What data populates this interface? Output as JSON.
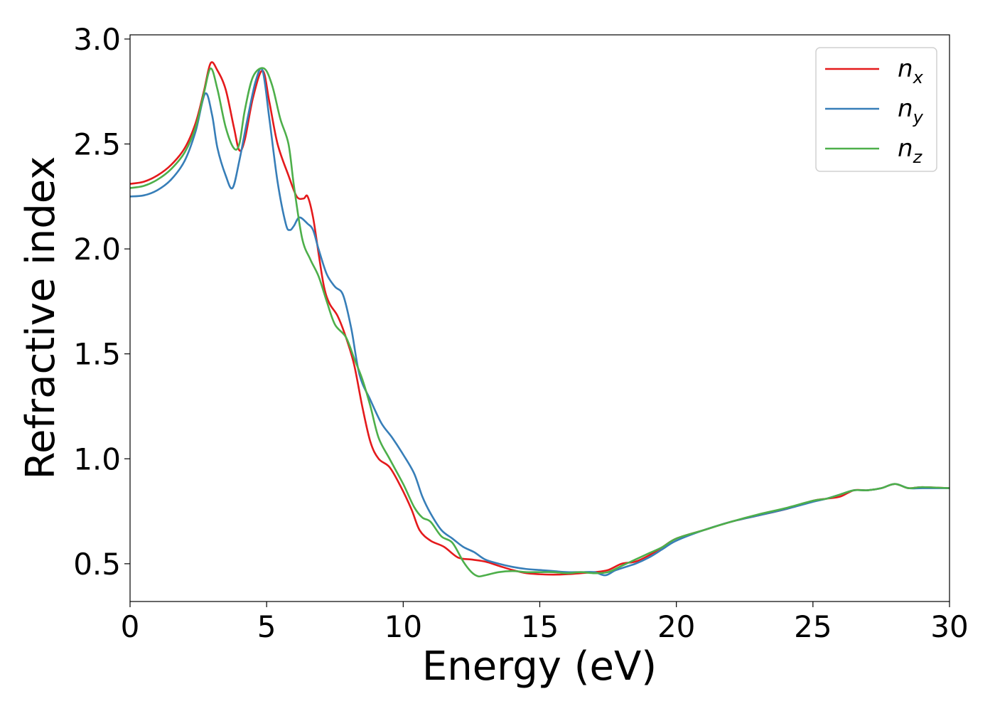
{
  "chart_data": {
    "type": "line",
    "xlabel": "Energy (eV)",
    "ylabel": "Refractive index",
    "xlim": [
      0,
      30
    ],
    "ylim": [
      0.32,
      3.02
    ],
    "xticks": [
      "0",
      "5",
      "10",
      "15",
      "20",
      "25",
      "30"
    ],
    "yticks": [
      "0.5",
      "1.0",
      "1.5",
      "2.0",
      "2.5",
      "3.0"
    ],
    "grid": false,
    "legend_position": "top-right",
    "series": [
      {
        "name": "n_x",
        "label_main": "n",
        "label_sub": "x",
        "color": "#e41a1c",
        "points": [
          [
            0,
            2.31
          ],
          [
            0.5,
            2.32
          ],
          [
            1.0,
            2.35
          ],
          [
            1.5,
            2.4
          ],
          [
            2.0,
            2.48
          ],
          [
            2.4,
            2.6
          ],
          [
            2.7,
            2.75
          ],
          [
            2.95,
            2.885
          ],
          [
            3.2,
            2.85
          ],
          [
            3.5,
            2.76
          ],
          [
            3.8,
            2.58
          ],
          [
            4.0,
            2.47
          ],
          [
            4.2,
            2.52
          ],
          [
            4.5,
            2.72
          ],
          [
            4.85,
            2.85
          ],
          [
            5.1,
            2.7
          ],
          [
            5.4,
            2.5
          ],
          [
            5.8,
            2.35
          ],
          [
            6.1,
            2.25
          ],
          [
            6.35,
            2.24
          ],
          [
            6.5,
            2.25
          ],
          [
            6.7,
            2.15
          ],
          [
            6.9,
            1.98
          ],
          [
            7.1,
            1.82
          ],
          [
            7.3,
            1.74
          ],
          [
            7.6,
            1.68
          ],
          [
            7.9,
            1.58
          ],
          [
            8.2,
            1.45
          ],
          [
            8.5,
            1.25
          ],
          [
            8.8,
            1.08
          ],
          [
            9.1,
            1.0
          ],
          [
            9.5,
            0.96
          ],
          [
            9.9,
            0.87
          ],
          [
            10.3,
            0.76
          ],
          [
            10.6,
            0.66
          ],
          [
            11.0,
            0.61
          ],
          [
            11.5,
            0.58
          ],
          [
            12.0,
            0.53
          ],
          [
            12.5,
            0.52
          ],
          [
            13.0,
            0.51
          ],
          [
            13.5,
            0.49
          ],
          [
            14.0,
            0.47
          ],
          [
            14.5,
            0.455
          ],
          [
            15.0,
            0.45
          ],
          [
            15.5,
            0.448
          ],
          [
            16.0,
            0.45
          ],
          [
            16.5,
            0.455
          ],
          [
            17.0,
            0.46
          ],
          [
            17.5,
            0.47
          ],
          [
            18.0,
            0.5
          ],
          [
            18.5,
            0.51
          ],
          [
            19.0,
            0.54
          ],
          [
            19.5,
            0.58
          ],
          [
            20.0,
            0.62
          ],
          [
            21.0,
            0.66
          ],
          [
            22.0,
            0.7
          ],
          [
            23.0,
            0.73
          ],
          [
            24.0,
            0.76
          ],
          [
            25.0,
            0.8
          ],
          [
            25.5,
            0.81
          ],
          [
            26.0,
            0.82
          ],
          [
            26.5,
            0.85
          ],
          [
            27.0,
            0.85
          ],
          [
            27.5,
            0.86
          ],
          [
            28.0,
            0.88
          ],
          [
            28.5,
            0.86
          ],
          [
            29.0,
            0.865
          ],
          [
            30.0,
            0.86
          ]
        ]
      },
      {
        "name": "n_y",
        "label_main": "n",
        "label_sub": "y",
        "color": "#377eb8",
        "points": [
          [
            0,
            2.25
          ],
          [
            0.5,
            2.255
          ],
          [
            1.0,
            2.28
          ],
          [
            1.5,
            2.33
          ],
          [
            2.0,
            2.42
          ],
          [
            2.4,
            2.56
          ],
          [
            2.75,
            2.74
          ],
          [
            3.0,
            2.64
          ],
          [
            3.2,
            2.48
          ],
          [
            3.5,
            2.35
          ],
          [
            3.75,
            2.29
          ],
          [
            4.0,
            2.42
          ],
          [
            4.3,
            2.62
          ],
          [
            4.6,
            2.8
          ],
          [
            4.85,
            2.85
          ],
          [
            5.1,
            2.62
          ],
          [
            5.4,
            2.32
          ],
          [
            5.7,
            2.12
          ],
          [
            5.85,
            2.09
          ],
          [
            6.0,
            2.11
          ],
          [
            6.2,
            2.15
          ],
          [
            6.5,
            2.12
          ],
          [
            6.7,
            2.09
          ],
          [
            6.9,
            2.0
          ],
          [
            7.2,
            1.88
          ],
          [
            7.5,
            1.82
          ],
          [
            7.8,
            1.78
          ],
          [
            8.1,
            1.62
          ],
          [
            8.4,
            1.4
          ],
          [
            8.8,
            1.28
          ],
          [
            9.2,
            1.17
          ],
          [
            9.6,
            1.1
          ],
          [
            10.0,
            1.02
          ],
          [
            10.4,
            0.93
          ],
          [
            10.7,
            0.82
          ],
          [
            11.0,
            0.74
          ],
          [
            11.4,
            0.66
          ],
          [
            11.8,
            0.62
          ],
          [
            12.2,
            0.58
          ],
          [
            12.6,
            0.555
          ],
          [
            13.0,
            0.52
          ],
          [
            13.5,
            0.5
          ],
          [
            14.0,
            0.485
          ],
          [
            14.5,
            0.475
          ],
          [
            15.0,
            0.47
          ],
          [
            15.5,
            0.465
          ],
          [
            16.0,
            0.46
          ],
          [
            16.5,
            0.46
          ],
          [
            17.0,
            0.46
          ],
          [
            17.4,
            0.445
          ],
          [
            17.8,
            0.47
          ],
          [
            18.5,
            0.5
          ],
          [
            19.0,
            0.53
          ],
          [
            19.5,
            0.57
          ],
          [
            20.0,
            0.61
          ],
          [
            21.0,
            0.66
          ],
          [
            22.0,
            0.7
          ],
          [
            23.0,
            0.73
          ],
          [
            24.0,
            0.76
          ],
          [
            25.0,
            0.795
          ],
          [
            25.5,
            0.81
          ],
          [
            26.0,
            0.83
          ],
          [
            26.5,
            0.85
          ],
          [
            27.0,
            0.85
          ],
          [
            27.5,
            0.86
          ],
          [
            28.0,
            0.88
          ],
          [
            28.5,
            0.86
          ],
          [
            29.0,
            0.86
          ],
          [
            30.0,
            0.86
          ]
        ]
      },
      {
        "name": "n_z",
        "label_main": "n",
        "label_sub": "z",
        "color": "#4daf4a",
        "points": [
          [
            0,
            2.29
          ],
          [
            0.5,
            2.3
          ],
          [
            1.0,
            2.33
          ],
          [
            1.5,
            2.38
          ],
          [
            2.0,
            2.46
          ],
          [
            2.4,
            2.58
          ],
          [
            2.7,
            2.74
          ],
          [
            2.95,
            2.86
          ],
          [
            3.2,
            2.76
          ],
          [
            3.5,
            2.58
          ],
          [
            3.8,
            2.48
          ],
          [
            4.0,
            2.5
          ],
          [
            4.2,
            2.66
          ],
          [
            4.5,
            2.82
          ],
          [
            4.9,
            2.86
          ],
          [
            5.2,
            2.78
          ],
          [
            5.5,
            2.62
          ],
          [
            5.8,
            2.5
          ],
          [
            6.0,
            2.3
          ],
          [
            6.3,
            2.05
          ],
          [
            6.6,
            1.95
          ],
          [
            6.9,
            1.87
          ],
          [
            7.2,
            1.75
          ],
          [
            7.5,
            1.64
          ],
          [
            7.9,
            1.58
          ],
          [
            8.2,
            1.48
          ],
          [
            8.5,
            1.38
          ],
          [
            8.8,
            1.25
          ],
          [
            9.1,
            1.1
          ],
          [
            9.5,
            1.0
          ],
          [
            10.0,
            0.88
          ],
          [
            10.4,
            0.77
          ],
          [
            10.7,
            0.72
          ],
          [
            11.0,
            0.7
          ],
          [
            11.4,
            0.63
          ],
          [
            11.8,
            0.6
          ],
          [
            12.2,
            0.51
          ],
          [
            12.5,
            0.46
          ],
          [
            12.75,
            0.44
          ],
          [
            13.0,
            0.445
          ],
          [
            13.5,
            0.46
          ],
          [
            14.0,
            0.465
          ],
          [
            14.5,
            0.46
          ],
          [
            15.0,
            0.46
          ],
          [
            15.5,
            0.46
          ],
          [
            16.0,
            0.455
          ],
          [
            16.5,
            0.46
          ],
          [
            17.0,
            0.455
          ],
          [
            17.5,
            0.46
          ],
          [
            18.0,
            0.49
          ],
          [
            18.5,
            0.52
          ],
          [
            19.0,
            0.55
          ],
          [
            19.5,
            0.58
          ],
          [
            20.0,
            0.62
          ],
          [
            21.0,
            0.66
          ],
          [
            22.0,
            0.7
          ],
          [
            23.0,
            0.735
          ],
          [
            24.0,
            0.765
          ],
          [
            25.0,
            0.8
          ],
          [
            25.5,
            0.81
          ],
          [
            26.0,
            0.83
          ],
          [
            26.5,
            0.85
          ],
          [
            27.0,
            0.85
          ],
          [
            27.5,
            0.86
          ],
          [
            28.0,
            0.88
          ],
          [
            28.5,
            0.86
          ],
          [
            29.0,
            0.865
          ],
          [
            30.0,
            0.86
          ]
        ]
      }
    ]
  }
}
